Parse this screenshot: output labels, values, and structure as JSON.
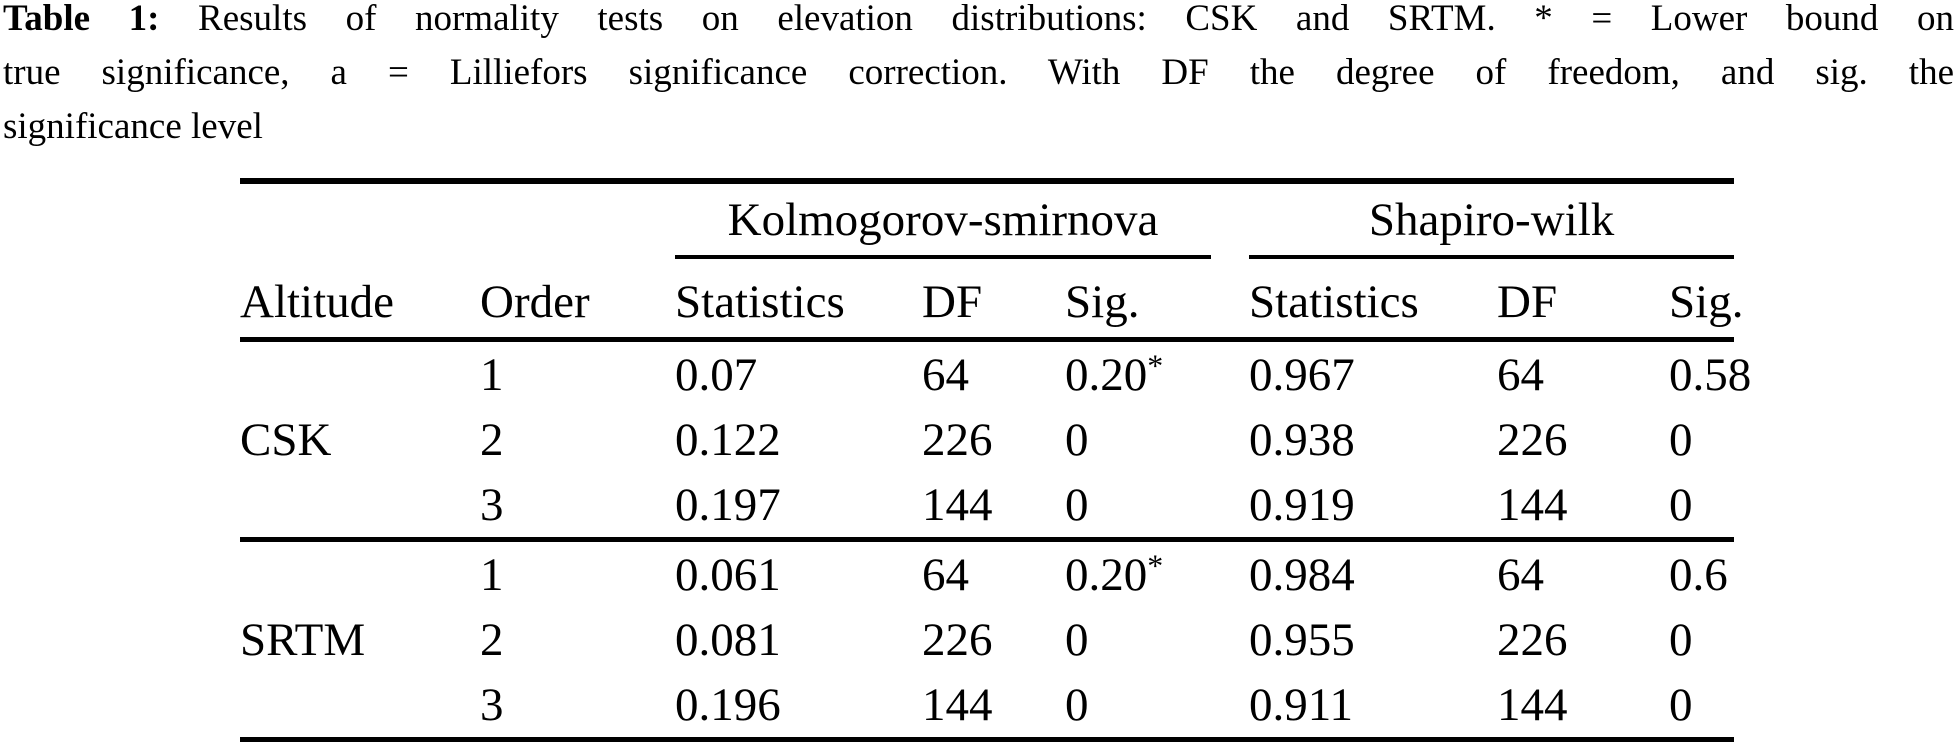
{
  "caption": {
    "line1_bold": "Table 1:",
    "line1_rest": "Results of normality tests on elevation distributions: CSK and SRTM. * = Lower bound on",
    "line2": "true significance, a = Lilliefors significance correction. With DF the degree of freedom, and sig. the",
    "line3": "significance level"
  },
  "table": {
    "group_headers": {
      "ks": "Kolmogorov-smirnova",
      "sw": "Shapiro-wilk"
    },
    "col_headers": {
      "altitude": "Altitude",
      "order": "Order",
      "statistics": "Statistics",
      "df": "DF",
      "sig": "Sig."
    },
    "groups": [
      {
        "altitude": "CSK",
        "rows": [
          {
            "order": "1",
            "ks_stat": "0.07",
            "ks_df": "64",
            "ks_sig": "0.20*",
            "sw_stat": "0.967",
            "sw_df": "64",
            "sw_sig": "0.58"
          },
          {
            "order": "2",
            "ks_stat": "0.122",
            "ks_df": "226",
            "ks_sig": "0",
            "sw_stat": "0.938",
            "sw_df": "226",
            "sw_sig": "0"
          },
          {
            "order": "3",
            "ks_stat": "0.197",
            "ks_df": "144",
            "ks_sig": "0",
            "sw_stat": "0.919",
            "sw_df": "144",
            "sw_sig": "0"
          }
        ]
      },
      {
        "altitude": "SRTM",
        "rows": [
          {
            "order": "1",
            "ks_stat": "0.061",
            "ks_df": "64",
            "ks_sig": "0.20*",
            "sw_stat": "0.984",
            "sw_df": "64",
            "sw_sig": "0.6"
          },
          {
            "order": "2",
            "ks_stat": "0.081",
            "ks_df": "226",
            "ks_sig": "0",
            "sw_stat": "0.955",
            "sw_df": "226",
            "sw_sig": "0"
          },
          {
            "order": "3",
            "ks_stat": "0.196",
            "ks_df": "144",
            "ks_sig": "0",
            "sw_stat": "0.911",
            "sw_df": "144",
            "sw_sig": "0"
          }
        ]
      }
    ]
  }
}
